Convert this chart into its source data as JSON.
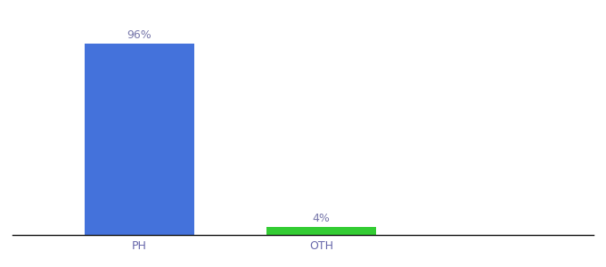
{
  "categories": [
    "PH",
    "OTH"
  ],
  "values": [
    96,
    4
  ],
  "bar_colors": [
    "#4472db",
    "#33cc33"
  ],
  "label_texts": [
    "96%",
    "4%"
  ],
  "ylim": [
    0,
    107
  ],
  "background_color": "#ffffff",
  "tick_color": "#6666aa",
  "bar_width": 0.6,
  "label_fontsize": 9,
  "tick_fontsize": 9,
  "x_positions": [
    1,
    2
  ],
  "xlim": [
    0.3,
    3.5
  ]
}
